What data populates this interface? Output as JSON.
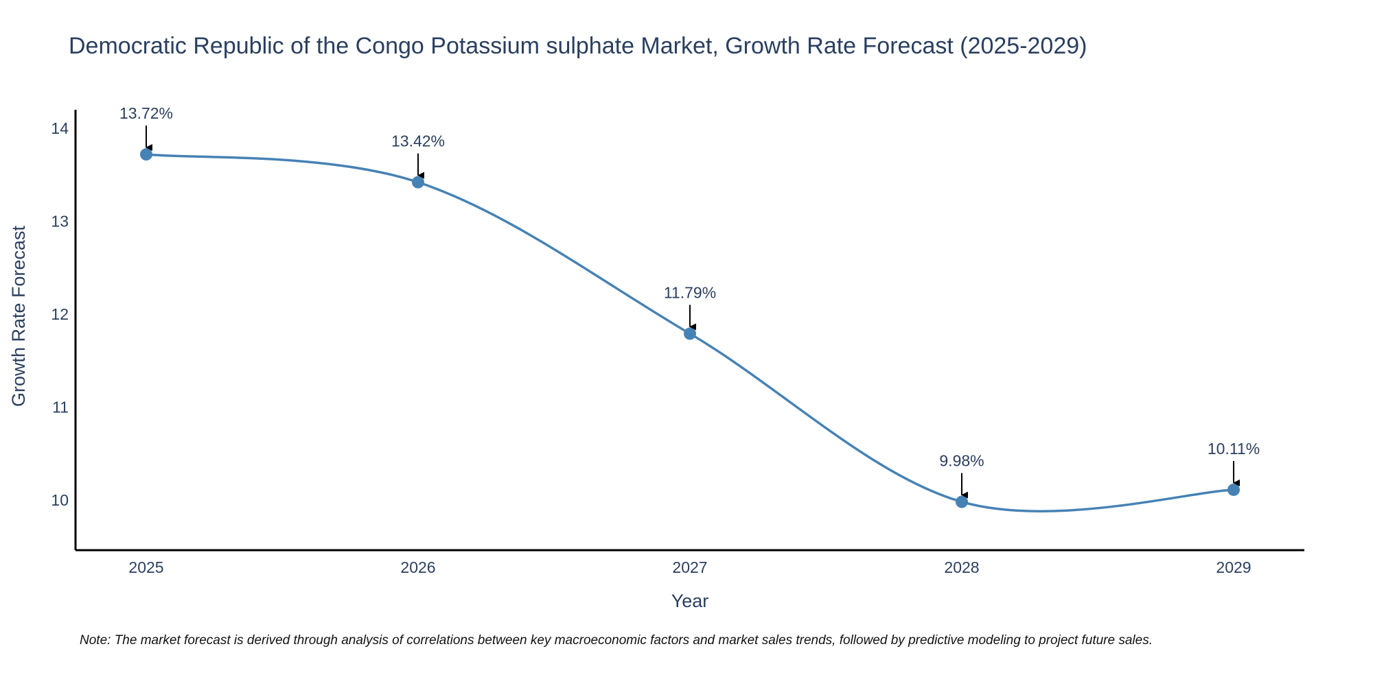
{
  "chart_data": {
    "type": "line",
    "title": "Democratic Republic of the Congo Potassium sulphate Market, Growth Rate Forecast (2025-2029)",
    "xlabel": "Year",
    "ylabel": "Growth Rate Forecast",
    "categories": [
      "2025",
      "2026",
      "2027",
      "2028",
      "2029"
    ],
    "series": [
      {
        "name": "Growth Rate Forecast",
        "values": [
          13.72,
          13.42,
          11.79,
          9.98,
          10.11
        ],
        "labels": [
          "13.72%",
          "13.42%",
          "11.79%",
          "9.98%",
          "10.11%"
        ]
      }
    ],
    "yticks": [
      "10",
      "11",
      "12",
      "13",
      "14"
    ],
    "ylim": [
      9.46,
      14.2
    ],
    "grid": false,
    "legend": "none",
    "note": "Note: The market forecast is derived through analysis of correlations between key macroeconomic factors and market sales trends, followed by predictive modeling to project future sales.",
    "colors": {
      "line": "#4682b4",
      "marker": "#4682b4",
      "axis": "#000000",
      "text": "#2a3f5f",
      "arrow": "#000000"
    }
  }
}
